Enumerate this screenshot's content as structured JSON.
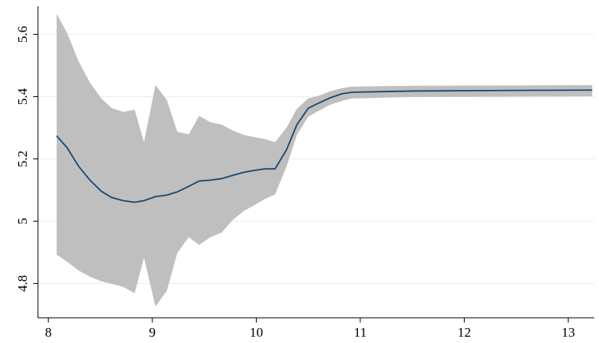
{
  "chart_data": {
    "type": "line-band",
    "x": [
      8.08,
      8.18,
      8.29,
      8.4,
      8.51,
      8.61,
      8.72,
      8.83,
      8.92,
      9.03,
      9.14,
      9.24,
      9.35,
      9.45,
      9.56,
      9.67,
      9.77,
      9.88,
      9.98,
      10.08,
      10.18,
      10.29,
      10.39,
      10.5,
      10.61,
      10.71,
      10.82,
      10.92,
      11.5,
      12.5,
      13.23
    ],
    "series": [
      {
        "color": "#1a476f",
        "values": [
          5.274,
          5.236,
          5.177,
          5.132,
          5.096,
          5.076,
          5.066,
          5.061,
          5.066,
          5.079,
          5.084,
          5.094,
          5.112,
          5.129,
          5.132,
          5.137,
          5.147,
          5.157,
          5.163,
          5.168,
          5.168,
          5.229,
          5.31,
          5.363,
          5.381,
          5.396,
          5.409,
          5.414,
          5.418,
          5.42,
          5.421
        ]
      }
    ],
    "band": {
      "color": "#bfbfbf",
      "upper": [
        5.666,
        5.605,
        5.514,
        5.445,
        5.394,
        5.363,
        5.351,
        5.358,
        5.254,
        5.437,
        5.389,
        5.287,
        5.279,
        5.338,
        5.318,
        5.31,
        5.292,
        5.277,
        5.27,
        5.264,
        5.254,
        5.3,
        5.361,
        5.394,
        5.404,
        5.417,
        5.427,
        5.432,
        5.435,
        5.436,
        5.437
      ],
      "lower": [
        4.893,
        4.87,
        4.842,
        4.822,
        4.807,
        4.799,
        4.789,
        4.769,
        4.883,
        4.726,
        4.777,
        4.898,
        4.949,
        4.924,
        4.949,
        4.964,
        5.003,
        5.033,
        5.051,
        5.071,
        5.086,
        5.175,
        5.277,
        5.336,
        5.356,
        5.374,
        5.386,
        5.394,
        5.399,
        5.4,
        5.401
      ]
    },
    "xlim": [
      7.9,
      13.25
    ],
    "xticks": [
      8,
      9,
      10,
      11,
      12,
      13
    ],
    "ylim": [
      4.69,
      5.69
    ],
    "yticks": [
      4.8,
      5,
      5.2,
      5.4,
      5.6
    ],
    "grid": true
  }
}
